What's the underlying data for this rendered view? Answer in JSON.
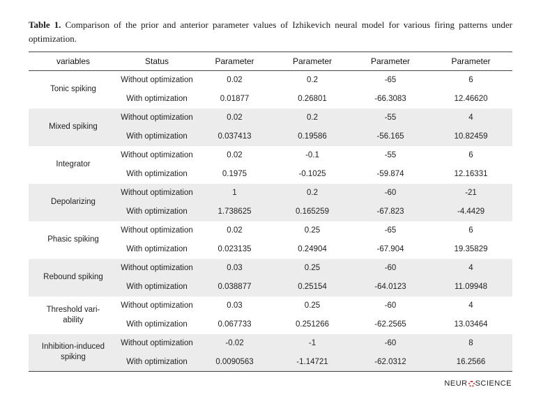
{
  "caption": {
    "label": "Table 1.",
    "text": "Comparison of the prior and anterior parameter values of Izhikevich neural model for various firing patterns under optimization."
  },
  "table": {
    "headers": [
      "variables",
      "Status",
      "Parameter",
      "Parameter",
      "Parameter",
      "Parameter"
    ],
    "groups": [
      {
        "variable": "Tonic spiking",
        "rows": [
          {
            "status": "Without optimization",
            "values": [
              "0.02",
              "0.2",
              "-65",
              "6"
            ]
          },
          {
            "status": "With optimization",
            "values": [
              "0.01877",
              "0.26801",
              "-66.3083",
              "12.46620"
            ]
          }
        ]
      },
      {
        "variable": "Mixed spiking",
        "rows": [
          {
            "status": "Without optimization",
            "values": [
              "0.02",
              "0.2",
              "-55",
              "4"
            ]
          },
          {
            "status": "With optimization",
            "values": [
              "0.037413",
              "0.19586",
              "-56.165",
              "10.82459"
            ]
          }
        ]
      },
      {
        "variable": "Integrator",
        "rows": [
          {
            "status": "Without optimization",
            "values": [
              "0.02",
              "-0.1",
              "-55",
              "6"
            ]
          },
          {
            "status": "With optimization",
            "values": [
              "0.1975",
              "-0.1025",
              "-59.874",
              "12.16331"
            ]
          }
        ]
      },
      {
        "variable": "Depolarizing",
        "rows": [
          {
            "status": "Without optimization",
            "values": [
              "1",
              "0.2",
              "-60",
              "-21"
            ]
          },
          {
            "status": "With optimization",
            "values": [
              "1.738625",
              "0.165259",
              "-67.823",
              "-4.4429"
            ]
          }
        ]
      },
      {
        "variable": "Phasic spiking",
        "rows": [
          {
            "status": "Without optimization",
            "values": [
              "0.02",
              "0.25",
              "-65",
              "6"
            ]
          },
          {
            "status": "With optimization",
            "values": [
              "0.023135",
              "0.24904",
              "-67.904",
              "19.35829"
            ]
          }
        ]
      },
      {
        "variable": "Rebound spiking",
        "rows": [
          {
            "status": "Without optimization",
            "values": [
              "0.03",
              "0.25",
              "-60",
              "4"
            ]
          },
          {
            "status": "With optimization",
            "values": [
              "0.038877",
              "0.25154",
              "-64.0123",
              "11.09948"
            ]
          }
        ]
      },
      {
        "variable": "Threshold vari-ability",
        "rows": [
          {
            "status": "Without optimization",
            "values": [
              "0.03",
              "0.25",
              "-60",
              "4"
            ]
          },
          {
            "status": "With optimization",
            "values": [
              "0.067733",
              "0.251266",
              "-62.2565",
              "13.03464"
            ]
          }
        ]
      },
      {
        "variable": "Inhibition-induced spiking",
        "rows": [
          {
            "status": "Without optimization",
            "values": [
              "-0.02",
              "-1",
              "-60",
              "8"
            ]
          },
          {
            "status": "With optimization",
            "values": [
              "0.0090563",
              "-1.14721",
              "-62.0312",
              "16.2566"
            ]
          }
        ]
      }
    ]
  },
  "logo": {
    "left": "NEUR",
    "right": "SCIENCE",
    "accent_color": "#d23a3a"
  },
  "colors": {
    "shade": "#ececec",
    "rule": "#444444"
  }
}
